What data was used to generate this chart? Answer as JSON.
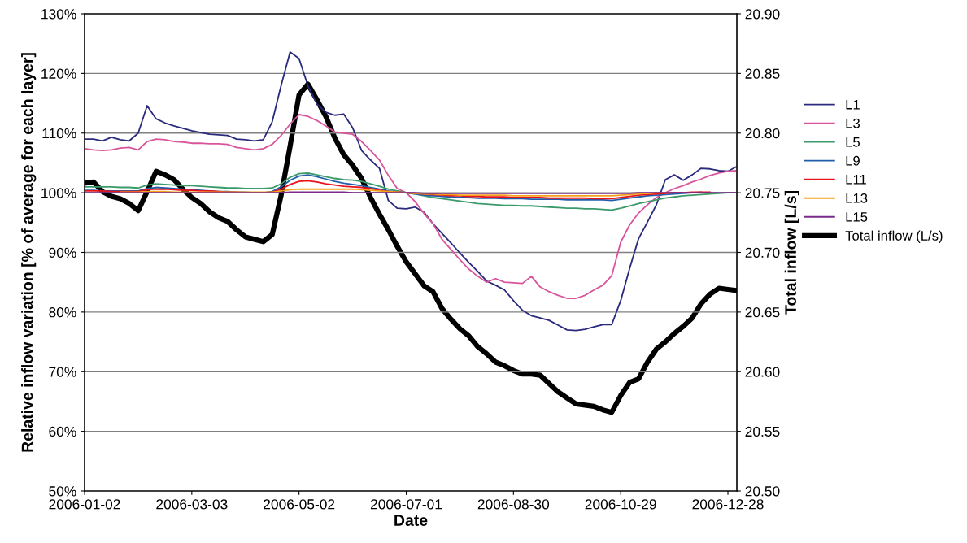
{
  "chart_data": {
    "type": "line",
    "xlabel": "Date",
    "ylabel": "Relative inflow variation [% of average for each layer]",
    "y2label": "Total inflow [L/s]",
    "x": [
      "2006-01-02",
      "2006-01-07",
      "2006-01-12",
      "2006-01-17",
      "2006-01-22",
      "2006-01-27",
      "2006-02-01",
      "2006-02-06",
      "2006-02-11",
      "2006-02-16",
      "2006-02-21",
      "2006-02-26",
      "2006-03-03",
      "2006-03-08",
      "2006-03-13",
      "2006-03-18",
      "2006-03-23",
      "2006-03-28",
      "2006-04-02",
      "2006-04-07",
      "2006-04-12",
      "2006-04-17",
      "2006-04-22",
      "2006-04-27",
      "2006-05-02",
      "2006-05-07",
      "2006-05-12",
      "2006-05-17",
      "2006-05-22",
      "2006-05-27",
      "2006-06-01",
      "2006-06-06",
      "2006-06-11",
      "2006-06-16",
      "2006-06-21",
      "2006-06-26",
      "2006-07-01",
      "2006-07-06",
      "2006-07-11",
      "2006-07-16",
      "2006-07-21",
      "2006-07-26",
      "2006-07-31",
      "2006-08-05",
      "2006-08-10",
      "2006-08-15",
      "2006-08-20",
      "2006-08-25",
      "2006-08-30",
      "2006-09-04",
      "2006-09-09",
      "2006-09-14",
      "2006-09-19",
      "2006-09-24",
      "2006-09-29",
      "2006-10-04",
      "2006-10-09",
      "2006-10-14",
      "2006-10-19",
      "2006-10-24",
      "2006-10-29",
      "2006-11-03",
      "2006-11-08",
      "2006-11-13",
      "2006-11-18",
      "2006-11-23",
      "2006-11-28",
      "2006-12-03",
      "2006-12-08",
      "2006-12-13",
      "2006-12-18",
      "2006-12-23",
      "2006-12-28",
      "2007-01-02"
    ],
    "series": [
      {
        "name": "L1",
        "color": "#2a2a7e",
        "values": [
          109.0,
          109.0,
          108.7,
          109.3,
          108.9,
          108.7,
          110.0,
          114.6,
          112.4,
          111.7,
          111.2,
          110.8,
          110.4,
          110.1,
          109.8,
          109.7,
          109.6,
          109.0,
          108.9,
          108.7,
          108.9,
          111.9,
          118.0,
          123.6,
          122.5,
          117.9,
          114.9,
          113.5,
          113.0,
          113.2,
          110.9,
          107.1,
          105.5,
          104.1,
          98.7,
          97.4,
          97.3,
          97.6,
          96.7,
          94.8,
          93.2,
          91.6,
          89.9,
          88.3,
          86.8,
          85.2,
          84.5,
          83.7,
          81.9,
          80.3,
          79.4,
          79.0,
          78.6,
          77.8,
          77.0,
          76.9,
          77.1,
          77.5,
          77.9,
          77.9,
          81.9,
          87.3,
          92.3,
          95.1,
          98.0,
          102.2,
          103.0,
          102.1,
          103.0,
          104.1,
          104.0,
          103.7,
          103.6,
          104.4
        ]
      },
      {
        "name": "L3",
        "color": "#d9559b",
        "values": [
          107.4,
          107.2,
          107.1,
          107.2,
          107.5,
          107.6,
          107.2,
          108.6,
          109.0,
          108.9,
          108.6,
          108.5,
          108.3,
          108.3,
          108.2,
          108.2,
          108.1,
          107.6,
          107.4,
          107.2,
          107.4,
          108.1,
          109.6,
          111.5,
          113.1,
          112.8,
          112.1,
          111.2,
          110.2,
          110.0,
          109.8,
          108.6,
          107.1,
          105.5,
          102.9,
          100.7,
          100.0,
          98.5,
          96.5,
          94.8,
          92.2,
          90.5,
          88.8,
          87.2,
          86.0,
          85.0,
          85.6,
          85.0,
          84.9,
          84.8,
          86.0,
          84.2,
          83.4,
          82.8,
          82.3,
          82.3,
          82.8,
          83.7,
          84.5,
          86.1,
          91.7,
          94.6,
          96.6,
          98.0,
          99.2,
          100.0,
          100.7,
          101.2,
          101.8,
          102.3,
          102.9,
          103.3,
          103.6,
          103.7
        ]
      },
      {
        "name": "L5",
        "color": "#3a9a6a",
        "values": [
          101.0,
          101.0,
          101.0,
          101.0,
          100.9,
          100.9,
          100.8,
          101.3,
          101.5,
          101.4,
          101.3,
          101.2,
          101.2,
          101.1,
          101.0,
          100.9,
          100.8,
          100.8,
          100.7,
          100.7,
          100.7,
          100.8,
          101.5,
          102.6,
          103.2,
          103.3,
          103.0,
          102.7,
          102.4,
          102.2,
          102.1,
          101.9,
          101.5,
          101.1,
          100.6,
          100.3,
          100.0,
          99.8,
          99.5,
          99.2,
          99.0,
          98.8,
          98.6,
          98.4,
          98.2,
          98.1,
          98.0,
          97.9,
          97.9,
          97.8,
          97.8,
          97.7,
          97.6,
          97.5,
          97.4,
          97.4,
          97.3,
          97.3,
          97.2,
          97.1,
          97.4,
          97.8,
          98.2,
          98.5,
          98.8,
          99.1,
          99.3,
          99.5,
          99.6,
          99.7,
          99.8,
          99.9,
          100.0,
          100.0
        ]
      },
      {
        "name": "L9",
        "color": "#1f5fa8",
        "values": [
          100.4,
          100.4,
          100.3,
          100.3,
          100.3,
          100.3,
          100.3,
          100.7,
          100.9,
          100.8,
          100.7,
          100.6,
          100.5,
          100.4,
          100.3,
          100.2,
          100.2,
          100.1,
          100.1,
          100.0,
          100.0,
          100.2,
          101.0,
          102.1,
          102.8,
          103.0,
          102.7,
          102.3,
          101.9,
          101.6,
          101.4,
          101.2,
          100.9,
          100.6,
          100.3,
          100.1,
          100.0,
          99.8,
          99.6,
          99.5,
          99.4,
          99.3,
          99.2,
          99.2,
          99.1,
          99.1,
          99.1,
          99.0,
          99.0,
          99.0,
          98.9,
          98.9,
          98.9,
          98.9,
          98.8,
          98.8,
          98.8,
          98.8,
          98.8,
          98.7,
          98.9,
          99.1,
          99.3,
          99.5,
          99.6,
          99.7,
          99.8,
          99.9,
          100.0,
          100.1,
          null,
          null,
          null,
          null
        ]
      },
      {
        "name": "L11",
        "color": "#e8141c",
        "values": [
          100.3,
          100.3,
          100.3,
          100.2,
          100.2,
          100.2,
          100.2,
          100.5,
          100.6,
          100.6,
          100.5,
          100.4,
          100.4,
          100.3,
          100.3,
          100.2,
          100.1,
          100.1,
          100.0,
          100.0,
          100.0,
          100.1,
          100.6,
          101.4,
          101.9,
          102.0,
          101.8,
          101.5,
          101.3,
          101.1,
          101.0,
          100.9,
          100.7,
          100.4,
          100.2,
          100.1,
          100.0,
          99.9,
          99.8,
          99.7,
          99.6,
          99.5,
          99.5,
          99.4,
          99.4,
          99.3,
          99.3,
          99.3,
          99.2,
          99.2,
          99.2,
          99.2,
          99.1,
          99.1,
          99.1,
          99.1,
          99.1,
          99.0,
          99.0,
          99.0,
          99.2,
          99.4,
          99.6,
          99.7,
          99.8,
          99.9,
          100.0,
          100.0,
          100.1,
          100.1,
          100.1,
          null,
          null,
          null
        ]
      },
      {
        "name": "L13",
        "color": "#f5a11c",
        "values": [
          null,
          null,
          null,
          null,
          100.1,
          100.1,
          100.1,
          100.2,
          100.2,
          100.2,
          100.1,
          100.1,
          100.1,
          100.1,
          100.1,
          100.1,
          100.1,
          100.1,
          100.1,
          100.1,
          100.1,
          100.1,
          100.3,
          100.5,
          100.6,
          100.6,
          100.6,
          100.6,
          100.6,
          100.6,
          100.6,
          100.5,
          100.4,
          100.3,
          100.2,
          100.1,
          100.0,
          99.9,
          99.8,
          99.8,
          99.7,
          99.7,
          99.6,
          99.6,
          99.6,
          99.6,
          99.6,
          99.6,
          99.5,
          99.5,
          99.5,
          99.5,
          99.5,
          99.5,
          99.5,
          99.5,
          99.5,
          99.5,
          99.5,
          99.5,
          99.6,
          99.7,
          99.8,
          99.9,
          100.0,
          100.0,
          null,
          null,
          null,
          null,
          null,
          null,
          null,
          null
        ]
      },
      {
        "name": "L15",
        "color": "#7a2a8a",
        "values": [
          100.0,
          100.0,
          100.0,
          100.0,
          100.0,
          100.0,
          100.0,
          100.0,
          100.0,
          100.0,
          100.0,
          100.0,
          100.0,
          100.0,
          100.0,
          100.0,
          100.0,
          100.0,
          100.0,
          100.0,
          100.0,
          100.0,
          100.0,
          100.1,
          100.1,
          100.1,
          100.1,
          100.1,
          100.1,
          100.1,
          100.0,
          100.0,
          100.0,
          100.0,
          100.0,
          100.0,
          100.0,
          100.0,
          99.9,
          99.9,
          99.9,
          99.9,
          99.9,
          99.9,
          99.9,
          99.9,
          99.9,
          99.9,
          99.9,
          99.9,
          99.9,
          99.9,
          99.9,
          99.9,
          99.9,
          99.9,
          99.9,
          99.9,
          99.9,
          99.9,
          99.9,
          99.9,
          100.0,
          100.0,
          100.0,
          100.0,
          100.0,
          100.0,
          100.0,
          100.0,
          100.0,
          100.0,
          100.0,
          100.0
        ]
      },
      {
        "name": "Total inflow (L/s)",
        "color": "#000000",
        "axis": "y2",
        "values": [
          20.758,
          20.759,
          20.751,
          20.747,
          20.745,
          20.741,
          20.735,
          20.751,
          20.768,
          20.765,
          20.761,
          20.753,
          20.746,
          20.741,
          20.734,
          20.729,
          20.726,
          20.719,
          20.713,
          20.711,
          20.709,
          20.715,
          20.748,
          20.789,
          20.832,
          20.841,
          20.828,
          20.814,
          20.796,
          20.782,
          20.773,
          20.762,
          20.746,
          20.732,
          20.719,
          20.705,
          20.692,
          20.682,
          20.672,
          20.667,
          20.653,
          20.644,
          20.636,
          20.63,
          20.621,
          20.615,
          20.608,
          20.605,
          20.601,
          20.598,
          20.598,
          20.597,
          20.59,
          20.583,
          20.578,
          20.573,
          20.572,
          20.571,
          20.568,
          20.566,
          20.58,
          20.591,
          20.594,
          20.608,
          20.619,
          20.625,
          20.632,
          20.638,
          20.645,
          20.657,
          20.665,
          20.67,
          20.669,
          20.668
        ]
      }
    ],
    "xlim": [
      "2006-01-02",
      "2007-01-02"
    ],
    "xticks": [
      {
        "value": "2006-01-02",
        "label": "2006-01-02"
      },
      {
        "value": "2006-03-03",
        "label": "2006-03-03"
      },
      {
        "value": "2006-05-02",
        "label": "2006-05-02"
      },
      {
        "value": "2006-07-01",
        "label": "2006-07-01"
      },
      {
        "value": "2006-08-30",
        "label": "2006-08-30"
      },
      {
        "value": "2006-10-29",
        "label": "2006-10-29"
      },
      {
        "value": "2006-12-28",
        "label": "2006-12-28"
      }
    ],
    "ylim": [
      50,
      130
    ],
    "yticks": [
      {
        "value": 50,
        "label": "50%"
      },
      {
        "value": 60,
        "label": "60%"
      },
      {
        "value": 70,
        "label": "70%"
      },
      {
        "value": 80,
        "label": "80%"
      },
      {
        "value": 90,
        "label": "90%"
      },
      {
        "value": 100,
        "label": "100%"
      },
      {
        "value": 110,
        "label": "110%"
      },
      {
        "value": 120,
        "label": "120%"
      },
      {
        "value": 130,
        "label": "130%"
      }
    ],
    "y2lim": [
      20.5,
      20.9
    ],
    "y2ticks": [
      {
        "value": 20.5,
        "label": "20.50"
      },
      {
        "value": 20.55,
        "label": "20.55"
      },
      {
        "value": 20.6,
        "label": "20.60"
      },
      {
        "value": 20.65,
        "label": "20.65"
      },
      {
        "value": 20.7,
        "label": "20.70"
      },
      {
        "value": 20.75,
        "label": "20.75"
      },
      {
        "value": 20.8,
        "label": "20.80"
      },
      {
        "value": 20.85,
        "label": "20.85"
      },
      {
        "value": 20.9,
        "label": "20.90"
      }
    ],
    "grid": "y",
    "legend": "right",
    "marker": "none",
    "line_style": "solid"
  }
}
